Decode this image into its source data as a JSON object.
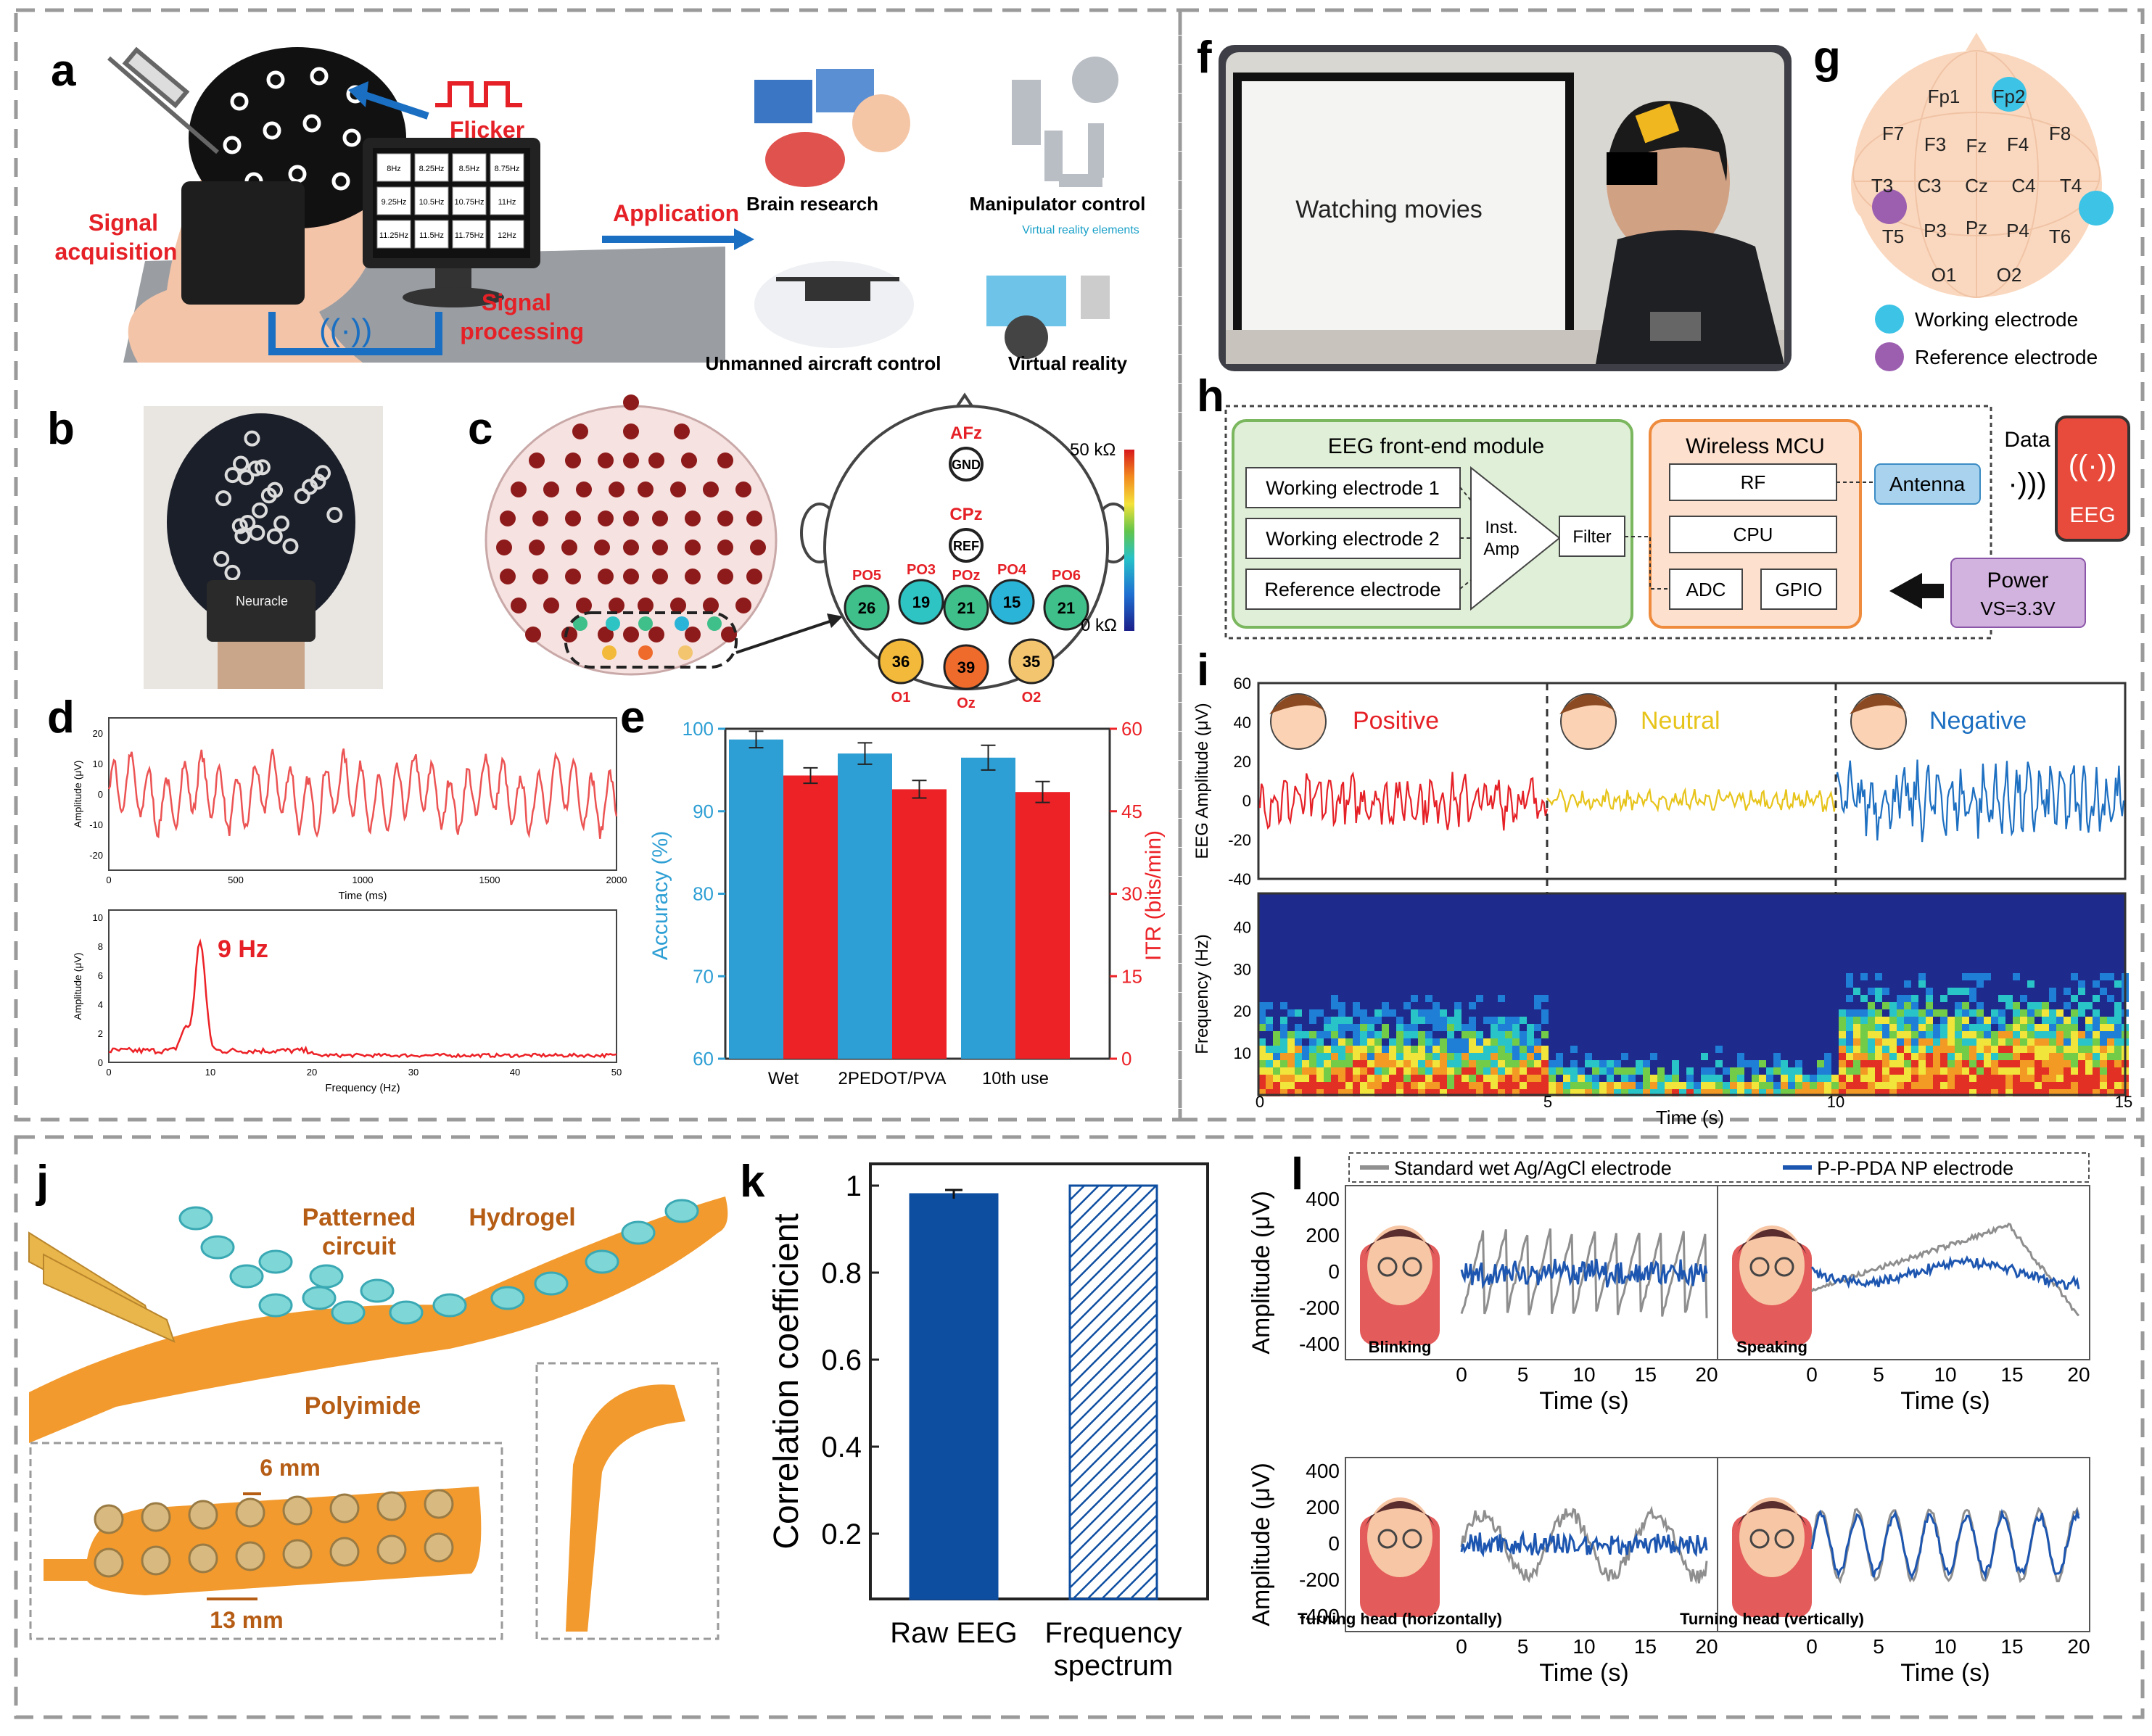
{
  "colors": {
    "blue": "#2e9fd4",
    "red": "#ec2227",
    "navy": "#0e4ea1",
    "orange": "#e9841a",
    "dashed": "#9a9a9a"
  },
  "panels": {
    "a": {
      "letter": "a",
      "flicker": "Flicker",
      "signal_acq": [
        "Signal",
        "acquisition"
      ],
      "signal_proc": [
        "Signal",
        "processing"
      ],
      "application": "Application",
      "freq_grid": [
        "8Hz",
        "8.25Hz",
        "8.5Hz",
        "8.75Hz",
        "9.25Hz",
        "10.5Hz",
        "10.75Hz",
        "11Hz",
        "11.25Hz",
        "11.5Hz",
        "11.75Hz",
        "12Hz"
      ],
      "apps": [
        "Brain research",
        "Manipulator control",
        "Unmanned aircraft control",
        "Virtual reality"
      ],
      "vr_elements": "Virtual reality elements"
    },
    "b": {
      "letter": "b",
      "cap_brand": "Neuracle"
    },
    "c": {
      "letter": "c",
      "labels_top": [
        "AFz",
        "GND",
        "CPz",
        "REF"
      ],
      "electrodes": [
        {
          "label": "PO5",
          "value": "26",
          "color": "#3fbf8a"
        },
        {
          "label": "PO3",
          "value": "19",
          "color": "#2ec4c4"
        },
        {
          "label": "POz",
          "value": "21",
          "color": "#3fbf8a"
        },
        {
          "label": "PO4",
          "value": "15",
          "color": "#2ab4d8"
        },
        {
          "label": "PO6",
          "value": "21",
          "color": "#3fbf8a"
        },
        {
          "label": "O1",
          "value": "36",
          "color": "#f2b93a"
        },
        {
          "label": "Oz",
          "value": "39",
          "color": "#ef6b2c"
        },
        {
          "label": "O2",
          "value": "35",
          "color": "#f2c56e"
        }
      ],
      "scale_max": "50 kΩ",
      "scale_min": "0 kΩ"
    },
    "d": {
      "letter": "d",
      "top_ylabel": "Amplitude (μV)",
      "top_xlabel": "Time (ms)",
      "top_yticks": [
        "20",
        "10",
        "0",
        "-10",
        "-20"
      ],
      "top_xticks": [
        "0",
        "500",
        "1000",
        "1500",
        "2000"
      ],
      "bot_ylabel": "Amplitude (μV)",
      "bot_xlabel": "Frequency (Hz)",
      "bot_yticks": [
        "10",
        "8",
        "6",
        "4",
        "2",
        "0"
      ],
      "bot_xticks": [
        "0",
        "10",
        "20",
        "30",
        "40",
        "50"
      ],
      "peak_label": "9 Hz"
    },
    "e": {
      "letter": "e",
      "ylabel": "Accuracy (%)",
      "y2label": "ITR (bits/min)"
    },
    "f": {
      "letter": "f",
      "screen_text": "Watching movies"
    },
    "g": {
      "letter": "g",
      "electrodes": [
        "Fp1",
        "Fp2",
        "F7",
        "F3",
        "Fz",
        "F4",
        "F8",
        "T3",
        "C3",
        "Cz",
        "C4",
        "T4",
        "T5",
        "P3",
        "Pz",
        "P4",
        "T6",
        "O1",
        "O2"
      ],
      "legend": [
        "Working electrode",
        "Reference electrode"
      ]
    },
    "h": {
      "letter": "h",
      "front_end": "EEG front-end module",
      "inputs": [
        "Working electrode 1",
        "Working electrode 2",
        "Reference electrode"
      ],
      "amp": [
        "Inst.",
        "Amp"
      ],
      "filter": "Filter",
      "mcu": "Wireless MCU",
      "rf": "RF",
      "cpu": "CPU",
      "adc": "ADC",
      "gpio": "GPIO",
      "antenna": "Antenna",
      "data": "Data",
      "phone": "EEG",
      "power": "Power",
      "vs": "VS=3.3V"
    },
    "i": {
      "letter": "i",
      "emotions": [
        "Positive",
        "Neutral",
        "Negative"
      ],
      "ylabel_top": "EEG Amplitude (μV)",
      "ylabel_bot": "Frequency (Hz)",
      "xlabel": "Time (s)",
      "top_yticks": [
        "60",
        "40",
        "20",
        "0",
        "-20",
        "-40"
      ],
      "bot_yticks": [
        "40",
        "30",
        "20",
        "10"
      ],
      "xticks": [
        "0",
        "5",
        "10",
        "15"
      ]
    },
    "j": {
      "letter": "j",
      "labels": [
        "Patterned",
        "circuit",
        "Hydrogel",
        "Polyimide"
      ],
      "dim1": "6 mm",
      "dim2": "13 mm"
    },
    "k": {
      "letter": "k",
      "ylabel": "Correlation coefficient"
    },
    "l": {
      "letter": "l",
      "legend": [
        "Standard wet Ag/AgCl electrode",
        "P-P-PDA NP electrode"
      ],
      "ylabel": "Amplitude (μV)",
      "xlabel": "Time (s)",
      "yticks": [
        "400",
        "200",
        "0",
        "-200",
        "-400"
      ],
      "xticks": [
        "0",
        "5",
        "10",
        "15",
        "20"
      ],
      "conditions": [
        "Blinking",
        "Speaking",
        "Turning head (horizontally)",
        "Turning head (vertically)"
      ]
    }
  },
  "chart_data": [
    {
      "type": "bar",
      "panel": "e",
      "categories": [
        "Wet",
        "2PEDOT/PVA",
        "10th use"
      ],
      "series": [
        {
          "name": "Accuracy (%)",
          "values": [
            98.7,
            97.0,
            96.5
          ],
          "errors": [
            1.0,
            1.3,
            1.5
          ],
          "color": "#2e9fd4"
        },
        {
          "name": "ITR (bits/min)",
          "values": [
            51.5,
            49.0,
            48.5
          ],
          "errors": [
            1.4,
            1.6,
            1.9
          ],
          "color": "#ec2227"
        }
      ],
      "ylabel": "Accuracy (%)",
      "ylim": [
        60,
        100
      ],
      "yticks": [
        60,
        70,
        80,
        90,
        100
      ],
      "y2label": "ITR (bits/min)",
      "y2lim": [
        0,
        60
      ],
      "y2ticks": [
        0,
        15,
        30,
        45,
        60
      ]
    },
    {
      "type": "bar",
      "panel": "k",
      "categories": [
        "Raw EEG",
        "Frequency spectrum"
      ],
      "values": [
        0.98,
        1.0
      ],
      "errors": [
        0.01,
        0
      ],
      "ylabel": "Correlation coefficient",
      "ylim": [
        0.05,
        1.05
      ],
      "yticks": [
        0.2,
        0.4,
        0.6,
        0.8,
        1.0
      ]
    }
  ]
}
